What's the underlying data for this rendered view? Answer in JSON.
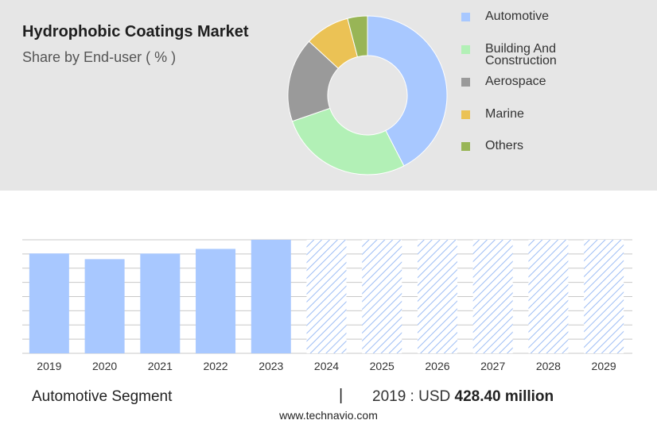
{
  "header": {
    "title": "Hydrophobic Coatings Market",
    "subtitle": "Share by End-user ( % )"
  },
  "footer": {
    "segment": "Automotive Segment",
    "separator": "|",
    "value_prefix": "2019 : USD",
    "value_amount": "428.40 million",
    "website": "www.technavio.com"
  },
  "chart_data": [
    {
      "type": "pie",
      "variant": "donut",
      "title": "Hydrophobic Coatings Market",
      "subtitle": "Share by End-user ( % )",
      "legend_position": "right",
      "slices": [
        {
          "label": "Automotive",
          "value": 42,
          "color": "#a8c8ff"
        },
        {
          "label": "Building And Construction",
          "value": 27,
          "color": "#b2f0b6"
        },
        {
          "label": "Aerospace",
          "value": 17,
          "color": "#9a9a9a"
        },
        {
          "label": "Marine",
          "value": 9,
          "color": "#ebc255"
        },
        {
          "label": "Others",
          "value": 4,
          "color": "#98b556"
        }
      ]
    },
    {
      "type": "bar",
      "segment": "Automotive Segment",
      "categories": [
        "2019",
        "2020",
        "2021",
        "2022",
        "2023",
        "2024",
        "2025",
        "2026",
        "2027",
        "2028",
        "2029"
      ],
      "values": [
        428.4,
        404,
        428,
        448,
        487,
        487,
        487,
        487,
        487,
        487,
        487
      ],
      "forecast_from": "2024",
      "ylim": [
        0,
        487
      ],
      "grid": true,
      "bar_color": "#a8c8ff",
      "forecast_pattern_color": "#9dbdf5",
      "grid_color": "#c8c8c8"
    }
  ]
}
